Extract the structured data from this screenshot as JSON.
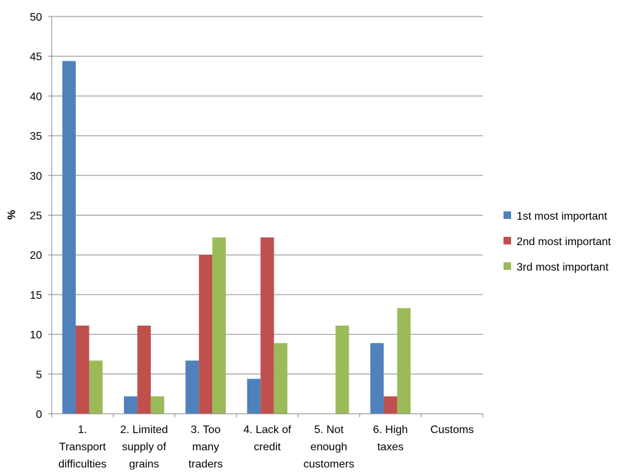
{
  "chart_data": {
    "type": "bar",
    "title": "",
    "xlabel": "",
    "ylabel": "%",
    "ylim": [
      0,
      50
    ],
    "yticks": [
      0,
      5,
      10,
      15,
      20,
      25,
      30,
      35,
      40,
      45,
      50
    ],
    "grid": true,
    "legend_position": "right",
    "categories": [
      [
        "1.",
        "Transport",
        "difficulties"
      ],
      [
        "2. Limited",
        "supply of",
        "grains"
      ],
      [
        "3. Too",
        "many",
        "traders"
      ],
      [
        "4. Lack of",
        "credit"
      ],
      [
        "5. Not",
        "enough",
        "customers"
      ],
      [
        "6. High",
        "taxes"
      ],
      [
        "Customs"
      ]
    ],
    "series": [
      {
        "name": "1st most important",
        "color": "#4F81BD",
        "values": [
          44.4,
          2.2,
          6.7,
          4.4,
          0,
          8.9,
          0
        ]
      },
      {
        "name": "2nd most important",
        "color": "#C0504D",
        "values": [
          11.1,
          11.1,
          20.0,
          22.2,
          0,
          2.2,
          0
        ]
      },
      {
        "name": "3rd most important",
        "color": "#9BBB59",
        "values": [
          6.7,
          2.2,
          22.2,
          8.9,
          11.1,
          13.3,
          0
        ]
      }
    ]
  }
}
